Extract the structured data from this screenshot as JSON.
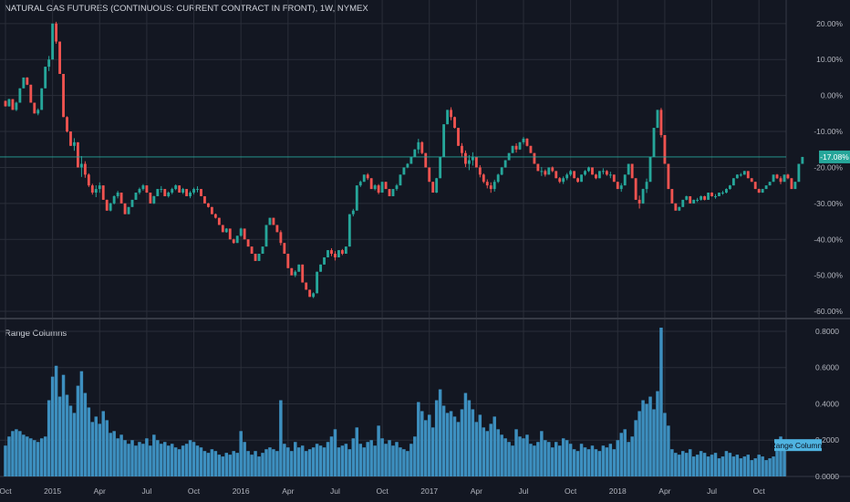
{
  "header": {
    "title": "NATURAL GAS FUTURES (CONTINUOUS: CURRENT CONTRACT IN FRONT), 1W, NYMEX"
  },
  "colors": {
    "background": "#131722",
    "grid": "#2a2e39",
    "up": "#26a69a",
    "down": "#ef5350",
    "columns": "#3d8fbf",
    "last_price_line": "#26a69a",
    "indicator_badge": "#4fb3e0"
  },
  "chart_data": [
    {
      "type": "candlestick",
      "title": "NATURAL GAS FUTURES (CONTINUOUS: CURRENT CONTRACT IN FRONT), 1W, NYMEX",
      "y_axis": {
        "scale": "percent",
        "ticks": [
          "20.00%",
          "10.00%",
          "0.00%",
          "-10.00%",
          "-20.00%",
          "-30.00%",
          "-40.00%",
          "-50.00%",
          "-60.00%"
        ],
        "tick_values": [
          20,
          10,
          0,
          -10,
          -20,
          -30,
          -40,
          -50,
          -60
        ],
        "ylim": [
          -61,
          23
        ]
      },
      "last_value_label": "-17.08%",
      "last_value": -17.08,
      "x_axis": {
        "ticks": [
          "Oct",
          "2015",
          "Apr",
          "Jul",
          "Oct",
          "2016",
          "Apr",
          "Jul",
          "Oct",
          "2017",
          "Apr",
          "Jul",
          "Oct",
          "2018",
          "Apr",
          "Jul",
          "Oct"
        ],
        "tick_weeks": [
          8,
          21,
          34,
          47,
          60,
          73,
          86,
          99,
          112,
          125,
          138,
          151,
          164,
          177,
          190,
          203,
          216
        ],
        "weeks_shown": 215
      },
      "close_series_pct": [
        -3,
        -1,
        -4,
        -2,
        2,
        5,
        3,
        -2,
        -5,
        -4,
        2,
        8,
        10,
        20,
        15,
        6,
        -6,
        -10,
        -14,
        -13,
        -20,
        -19,
        -22,
        -25,
        -27,
        -26,
        -25,
        -29,
        -32,
        -30,
        -28,
        -27,
        -30,
        -33,
        -31,
        -29,
        -27,
        -26,
        -25,
        -27,
        -30,
        -28,
        -26,
        -26,
        -28,
        -27,
        -26,
        -25,
        -27,
        -26,
        -28,
        -27,
        -26,
        -26,
        -28,
        -30,
        -31,
        -33,
        -34,
        -36,
        -38,
        -37,
        -40,
        -41,
        -39,
        -37,
        -40,
        -42,
        -44,
        -46,
        -44,
        -42,
        -36,
        -34,
        -36,
        -38,
        -41,
        -44,
        -48,
        -50,
        -49,
        -47,
        -52,
        -54,
        -56,
        -55,
        -49,
        -47,
        -45,
        -43,
        -44,
        -45,
        -43,
        -44,
        -42,
        -33,
        -32,
        -25,
        -24,
        -22,
        -23,
        -26,
        -25,
        -27,
        -24,
        -26,
        -28,
        -26,
        -25,
        -22,
        -20,
        -19,
        -17,
        -15,
        -13,
        -16,
        -20,
        -24,
        -27,
        -23,
        -17,
        -8,
        -4,
        -6,
        -9,
        -14,
        -16,
        -19,
        -18,
        -17,
        -20,
        -22,
        -24,
        -25,
        -26,
        -24,
        -22,
        -20,
        -18,
        -16,
        -14,
        -15,
        -13,
        -12,
        -14,
        -16,
        -19,
        -21,
        -21,
        -22,
        -20,
        -21,
        -23,
        -24,
        -23,
        -22,
        -21,
        -23,
        -24,
        -22,
        -21,
        -20,
        -22,
        -23,
        -21,
        -21,
        -22,
        -22,
        -24,
        -26,
        -25,
        -22,
        -19,
        -23,
        -29,
        -30,
        -26,
        -24,
        -17,
        -9,
        -4,
        -11,
        -19,
        -26,
        -30,
        -32,
        -31,
        -29,
        -28,
        -30,
        -29,
        -29,
        -28,
        -29,
        -27,
        -28,
        -28,
        -27,
        -27,
        -26,
        -25,
        -23,
        -22,
        -22,
        -21,
        -23,
        -24,
        -26,
        -27,
        -26,
        -25,
        -24,
        -22,
        -23,
        -24,
        -22,
        -23,
        -26,
        -24,
        -19,
        -17.08
      ]
    },
    {
      "type": "bar",
      "title": "Range Columns",
      "legend_label": "Range Columns",
      "y_axis": {
        "ticks": [
          "0.8000",
          "0.6000",
          "0.4000",
          "0.2000",
          "0.0000"
        ],
        "tick_values": [
          0.8,
          0.6,
          0.4,
          0.2,
          0.0
        ],
        "ylim": [
          0,
          0.83
        ]
      },
      "values": [
        0.17,
        0.22,
        0.25,
        0.26,
        0.25,
        0.23,
        0.22,
        0.21,
        0.2,
        0.19,
        0.21,
        0.22,
        0.42,
        0.55,
        0.61,
        0.44,
        0.56,
        0.45,
        0.39,
        0.35,
        0.5,
        0.58,
        0.46,
        0.38,
        0.3,
        0.33,
        0.29,
        0.36,
        0.31,
        0.24,
        0.25,
        0.21,
        0.23,
        0.2,
        0.18,
        0.2,
        0.17,
        0.19,
        0.18,
        0.21,
        0.17,
        0.23,
        0.2,
        0.18,
        0.19,
        0.17,
        0.18,
        0.16,
        0.15,
        0.17,
        0.18,
        0.2,
        0.19,
        0.17,
        0.16,
        0.14,
        0.13,
        0.15,
        0.14,
        0.12,
        0.11,
        0.13,
        0.12,
        0.14,
        0.13,
        0.25,
        0.19,
        0.14,
        0.12,
        0.14,
        0.11,
        0.13,
        0.15,
        0.16,
        0.15,
        0.14,
        0.42,
        0.18,
        0.16,
        0.14,
        0.19,
        0.16,
        0.17,
        0.14,
        0.15,
        0.16,
        0.18,
        0.17,
        0.16,
        0.19,
        0.22,
        0.26,
        0.16,
        0.17,
        0.18,
        0.15,
        0.21,
        0.27,
        0.18,
        0.16,
        0.19,
        0.2,
        0.17,
        0.28,
        0.21,
        0.18,
        0.2,
        0.17,
        0.19,
        0.16,
        0.15,
        0.14,
        0.18,
        0.22,
        0.41,
        0.36,
        0.31,
        0.34,
        0.27,
        0.42,
        0.48,
        0.39,
        0.35,
        0.36,
        0.33,
        0.3,
        0.37,
        0.46,
        0.42,
        0.37,
        0.3,
        0.34,
        0.27,
        0.25,
        0.29,
        0.33,
        0.26,
        0.23,
        0.21,
        0.19,
        0.17,
        0.26,
        0.22,
        0.21,
        0.23,
        0.18,
        0.17,
        0.19,
        0.25,
        0.2,
        0.19,
        0.16,
        0.19,
        0.17,
        0.21,
        0.2,
        0.18,
        0.15,
        0.14,
        0.18,
        0.16,
        0.15,
        0.17,
        0.15,
        0.14,
        0.17,
        0.16,
        0.18,
        0.15,
        0.2,
        0.24,
        0.26,
        0.19,
        0.22,
        0.31,
        0.36,
        0.42,
        0.4,
        0.44,
        0.37,
        0.47,
        0.82,
        0.35,
        0.28,
        0.15,
        0.13,
        0.12,
        0.14,
        0.13,
        0.15,
        0.11,
        0.12,
        0.14,
        0.13,
        0.11,
        0.12,
        0.13,
        0.1,
        0.11,
        0.14,
        0.13,
        0.11,
        0.12,
        0.1,
        0.11,
        0.12,
        0.09,
        0.1,
        0.12,
        0.11,
        0.09,
        0.1,
        0.11,
        0.14,
        0.22,
        0.15
      ]
    }
  ]
}
